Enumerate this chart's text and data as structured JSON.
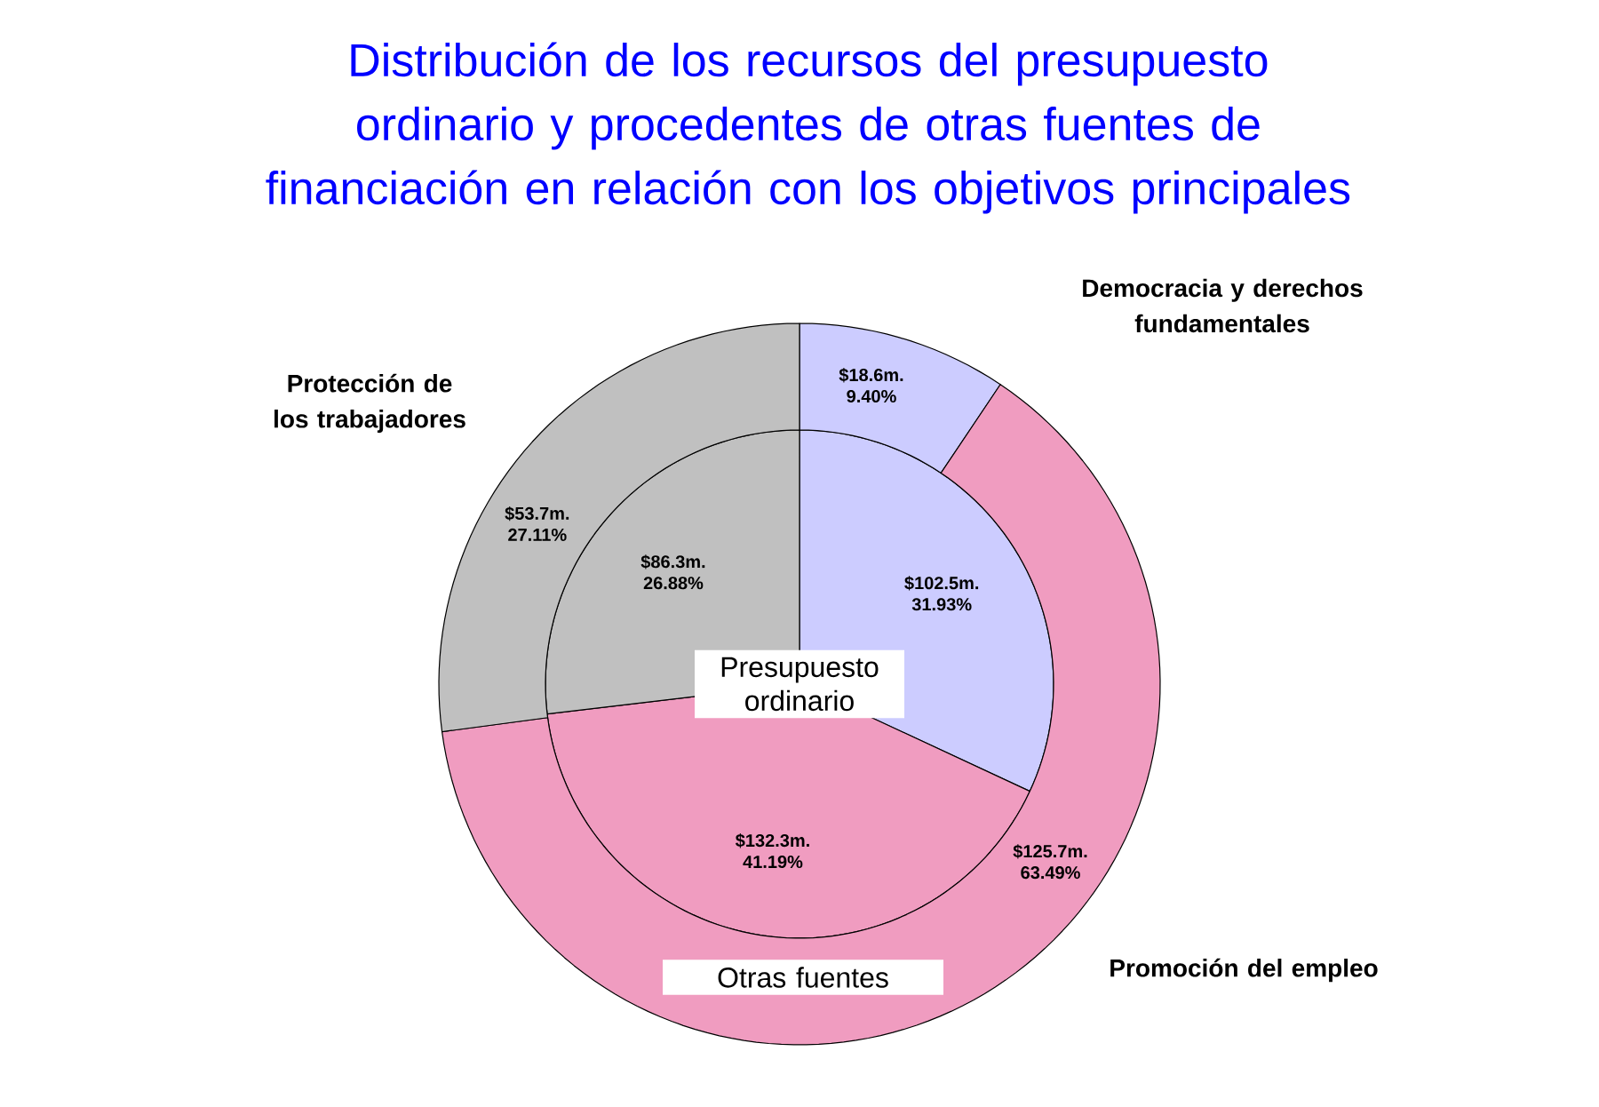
{
  "chart_data": {
    "type": "pie",
    "title": "Distribución de los recursos del presupuesto ordinario y procedentes de otras fuentes de financiación en relación con los objetivos principales",
    "categories": [
      "Democracia y derechos fundamentales",
      "Promoción del empleo",
      "Protección de los trabajadores"
    ],
    "colors": [
      "#ccccff",
      "#f09cc0",
      "#c0c0c0"
    ],
    "series": [
      {
        "name": "Presupuesto ordinario",
        "values": [
          31.93,
          41.19,
          26.88
        ],
        "value_labels": [
          "$102.5m. 31.93%",
          "$132.3m. 41.19%",
          "$86.3m. 26.88%"
        ]
      },
      {
        "name": "Otras fuentes",
        "type": "donut",
        "values": [
          9.4,
          63.49,
          27.11
        ],
        "value_labels": [
          "$18.6m. 9.40%",
          "$125.7m. 63.49%",
          "$53.7m. 27.11%"
        ]
      }
    ]
  }
}
